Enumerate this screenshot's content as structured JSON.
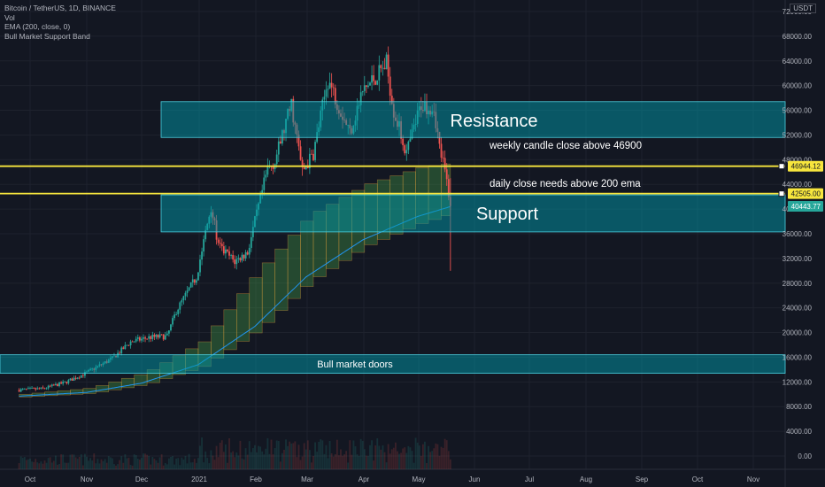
{
  "legend": {
    "symbol": "Bitcoin / TetherUS, 1D, BINANCE",
    "vol": "Vol",
    "ema": "EMA (200, close, 0)",
    "band": "Bull Market Support Band"
  },
  "currency": "USDT",
  "chart_data": {
    "type": "candlestick",
    "x_ticks": [
      "Oct",
      "Nov",
      "Dec",
      "2021",
      "Feb",
      "Mar",
      "Apr",
      "May",
      "Jun",
      "Jul",
      "Aug",
      "Sep",
      "Oct",
      "Nov"
    ],
    "y_ticks": [
      "0.00",
      "4000.00",
      "8000.00",
      "12000.00",
      "16000.00",
      "20000.00",
      "24000.00",
      "28000.00",
      "32000.00",
      "36000.00",
      "40000.00",
      "44000.00",
      "48000.00",
      "52000.00",
      "56000.00",
      "60000.00",
      "64000.00",
      "68000.00",
      "72000.00"
    ],
    "ylim": [
      -1500,
      72500
    ],
    "price_labels": {
      "weekly": {
        "text": "46944.12",
        "value": 46944.12
      },
      "daily": {
        "text": "42505.00",
        "value": 42505.0
      },
      "ema": {
        "text": "40443.77",
        "value": 40443.77
      }
    },
    "zones": [
      {
        "label": "Resistance",
        "from": 51600,
        "to": 57400
      },
      {
        "label": "Support",
        "from": 36300,
        "to": 42300
      },
      {
        "label": "Bull market doors",
        "from": 13400,
        "to": 16400
      }
    ],
    "annotations": [
      {
        "text": "weekly candle close above 46900"
      },
      {
        "text": "daily close needs above 200 ema"
      }
    ],
    "price_path": [
      [
        "2020-09-25",
        10700
      ],
      [
        "2020-10-08",
        10900
      ],
      [
        "2020-10-20",
        11900
      ],
      [
        "2020-11-01",
        13500
      ],
      [
        "2020-11-15",
        15800
      ],
      [
        "2020-11-25",
        18500
      ],
      [
        "2020-12-05",
        19200
      ],
      [
        "2020-12-15",
        19400
      ],
      [
        "2020-12-20",
        23500
      ],
      [
        "2020-12-31",
        29000
      ],
      [
        "2021-01-08",
        40500
      ],
      [
        "2021-01-12",
        34000
      ],
      [
        "2021-01-21",
        31500
      ],
      [
        "2021-01-28",
        33000
      ],
      [
        "2021-02-08",
        46500
      ],
      [
        "2021-02-12",
        47800
      ],
      [
        "2021-02-21",
        57000
      ],
      [
        "2021-02-27",
        46000
      ],
      [
        "2021-03-05",
        49000
      ],
      [
        "2021-03-13",
        61000
      ],
      [
        "2021-03-25",
        52500
      ],
      [
        "2021-04-01",
        59000
      ],
      [
        "2021-04-14",
        63500
      ],
      [
        "2021-04-18",
        56000
      ],
      [
        "2021-04-25",
        49000
      ],
      [
        "2021-05-03",
        57000
      ],
      [
        "2021-05-10",
        56500
      ],
      [
        "2021-05-13",
        50000
      ],
      [
        "2021-05-16",
        46000
      ],
      [
        "2021-05-18",
        42800
      ],
      [
        "2021-05-19",
        40000
      ]
    ],
    "ema_path": [
      [
        "2020-09-25",
        9700
      ],
      [
        "2020-11-01",
        10300
      ],
      [
        "2020-12-01",
        11800
      ],
      [
        "2021-01-01",
        14800
      ],
      [
        "2021-02-01",
        21000
      ],
      [
        "2021-03-01",
        29000
      ],
      [
        "2021-04-01",
        35000
      ],
      [
        "2021-05-01",
        38800
      ],
      [
        "2021-05-19",
        40400
      ]
    ],
    "band_path": [
      [
        "2020-09-25",
        10000
      ],
      [
        "2020-11-01",
        11000
      ],
      [
        "2020-12-01",
        13500
      ],
      [
        "2021-01-01",
        18500
      ],
      [
        "2021-02-01",
        30000
      ],
      [
        "2021-03-01",
        39000
      ],
      [
        "2021-04-01",
        44000
      ],
      [
        "2021-05-01",
        46800
      ],
      [
        "2021-05-19",
        47500
      ]
    ]
  }
}
